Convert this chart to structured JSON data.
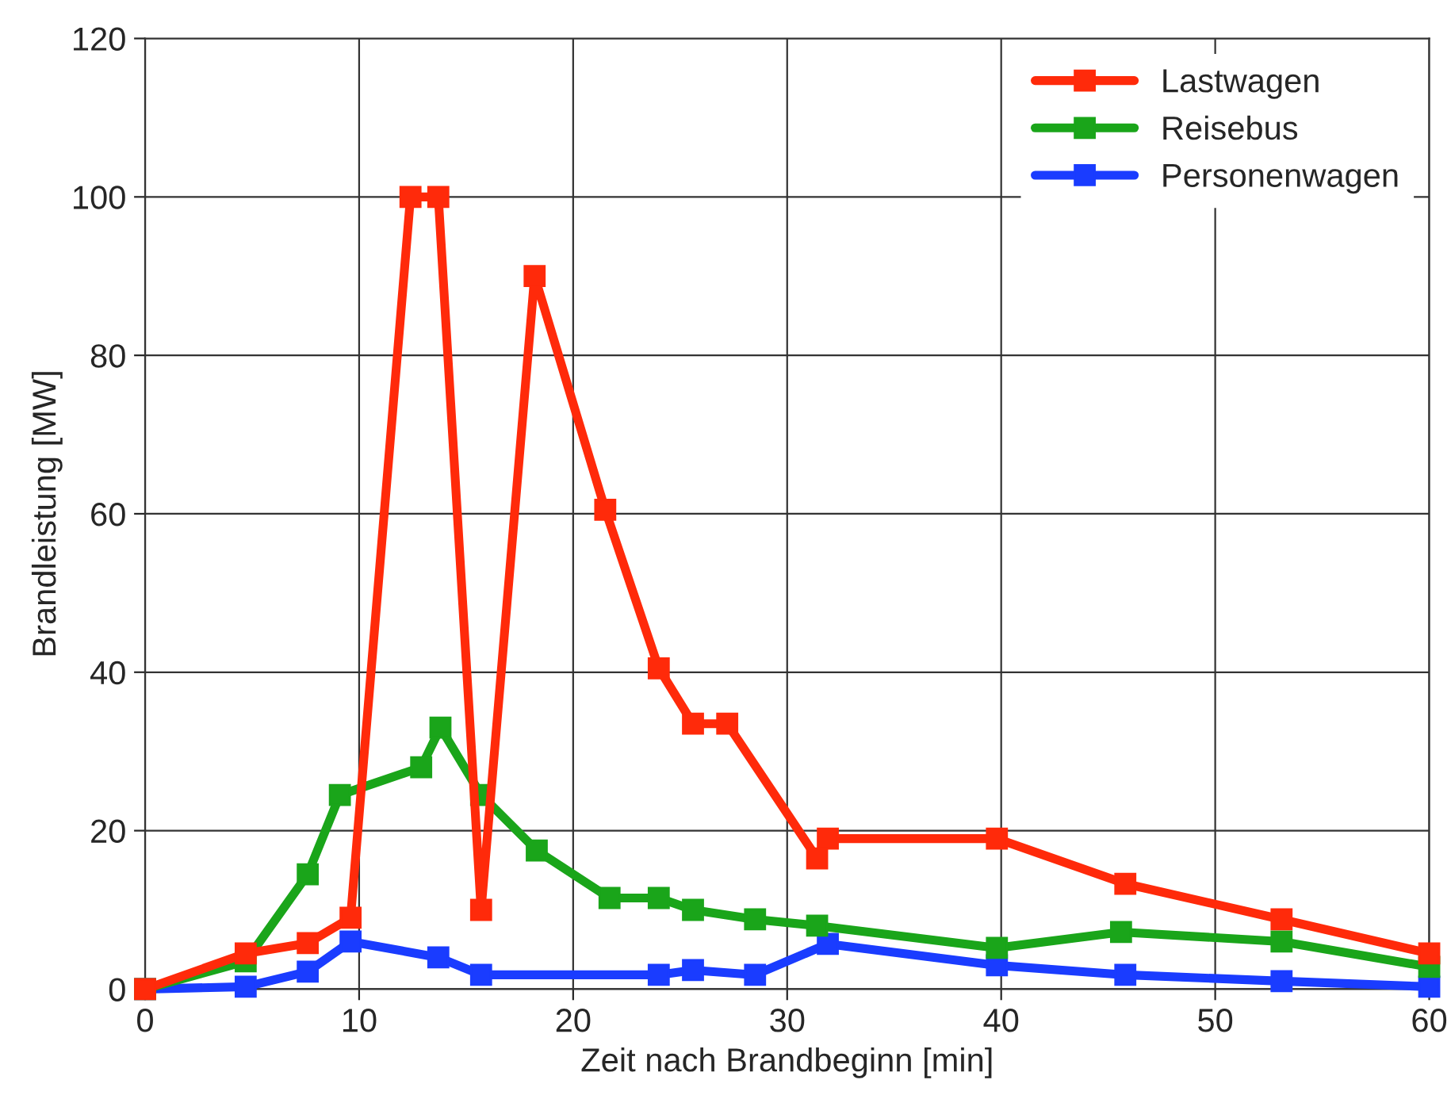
{
  "chart_data": {
    "type": "line",
    "xlabel": "Zeit nach Brandbeginn [min]",
    "ylabel": "Brandleistung [MW]",
    "xlim": [
      0,
      60
    ],
    "ylim": [
      0,
      120
    ],
    "xticks": [
      0,
      10,
      20,
      30,
      40,
      50,
      60
    ],
    "yticks": [
      0,
      20,
      40,
      60,
      80,
      100,
      120
    ],
    "grid": true,
    "legend": "top right",
    "marker": "square",
    "line_style": "solid",
    "series": [
      {
        "name": "Lastwagen",
        "color": "#ff2a0a",
        "x": [
          0,
          4.7,
          7.6,
          9.6,
          12.4,
          13.7,
          15.7,
          18.2,
          21.5,
          24,
          25.6,
          27.2,
          31.4,
          31.9,
          39.8,
          45.8,
          53.1,
          60
        ],
        "values": [
          0,
          4.5,
          5.8,
          9,
          100,
          100,
          10,
          90,
          60.5,
          40.5,
          33.5,
          33.5,
          16.5,
          19,
          19,
          13.3,
          8.8,
          4.5
        ]
      },
      {
        "name": "Reisebus",
        "color": "#1aa51a",
        "x": [
          0,
          4.7,
          7.6,
          9.1,
          12.9,
          13.8,
          15.7,
          18.3,
          21.7,
          24,
          25.6,
          28.5,
          31.4,
          39.8,
          45.6,
          53.1,
          60
        ],
        "values": [
          0,
          3.5,
          14.5,
          24.5,
          28,
          33,
          24.5,
          17.5,
          11.5,
          11.5,
          10,
          8.8,
          8,
          5.2,
          7.2,
          6,
          2.8
        ]
      },
      {
        "name": "Personenwagen",
        "color": "#1a3cff",
        "x": [
          0,
          4.7,
          7.6,
          9.6,
          13.7,
          15.7,
          24,
          25.6,
          28.5,
          31.9,
          39.8,
          45.8,
          53.1,
          60
        ],
        "values": [
          0,
          0.3,
          2.2,
          6,
          4,
          1.8,
          1.8,
          2.4,
          1.8,
          5.7,
          3,
          1.8,
          1,
          0.3
        ]
      }
    ]
  }
}
